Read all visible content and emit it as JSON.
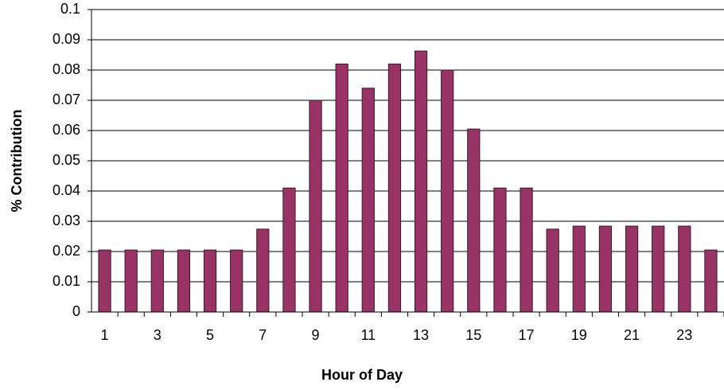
{
  "chart_data": {
    "type": "bar",
    "x_label": "Hour of Day",
    "y_label": "% Contribution",
    "categories": [
      "1",
      null,
      "3",
      null,
      "5",
      null,
      "7",
      null,
      "9",
      null,
      "11",
      null,
      "13",
      null,
      "15",
      null,
      "17",
      null,
      "19",
      null,
      "21",
      null,
      "23",
      null
    ],
    "values": [
      0.0205,
      0.0205,
      0.0205,
      0.0205,
      0.0205,
      0.0205,
      0.0274,
      0.041,
      0.07,
      0.082,
      0.074,
      0.082,
      0.0863,
      0.08,
      0.0605,
      0.041,
      0.041,
      0.0274,
      0.0284,
      0.0284,
      0.0284,
      0.0284,
      0.0284,
      0.0205
    ],
    "color": "#993366",
    "ylim": [
      0,
      0.1
    ],
    "yticks": [
      0,
      0.01,
      0.02,
      0.03,
      0.04,
      0.05,
      0.06,
      0.07,
      0.08,
      0.09,
      0.1
    ],
    "grid": true
  }
}
